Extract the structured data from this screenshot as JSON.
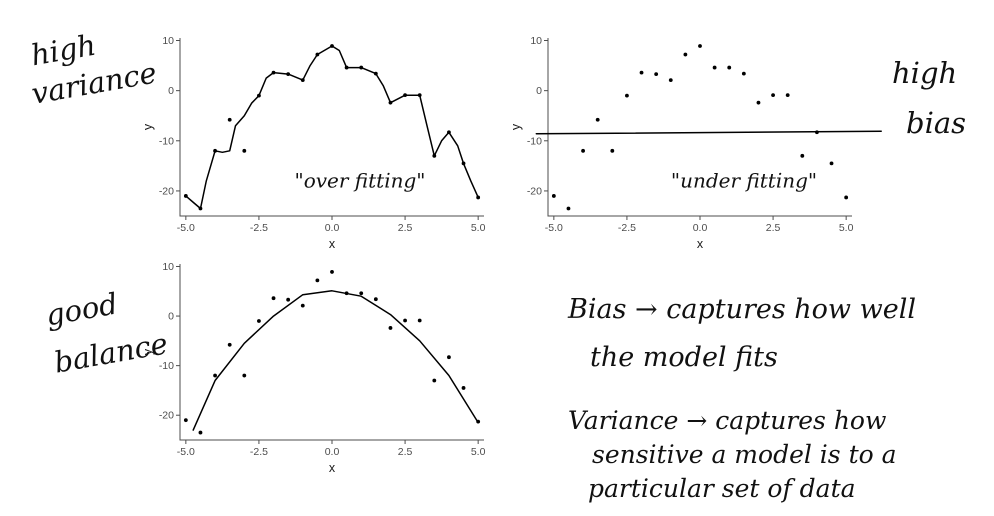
{
  "annotations": {
    "high_variance": [
      "high",
      "variance"
    ],
    "high_bias": [
      "high",
      "bias"
    ],
    "good_balance": [
      "good",
      "balance"
    ],
    "overfitting": "\"over fitting\"",
    "underfitting": "\"under fitting\"",
    "bias_note": [
      "Bias → captures how well",
      "the model fits"
    ],
    "variance_note": [
      "Variance → captures how",
      "sensitive a model is to a",
      "particular set of data"
    ]
  },
  "colors": {
    "points": "#000000",
    "lines": "#000000",
    "axes": "#4d4d4d"
  },
  "chart_data": [
    {
      "type": "scatter",
      "panel": "overfit",
      "xlabel": "x",
      "ylabel": "y",
      "xlim": [
        -5.2,
        5.2
      ],
      "ylim": [
        -25,
        10.5
      ],
      "xticks": [
        -5.0,
        -2.5,
        0.0,
        2.5,
        5.0
      ],
      "xtick_labels": [
        "-5.0",
        "-2.5",
        "0.0",
        "2.5",
        "5.0"
      ],
      "yticks": [
        -20,
        -10,
        0,
        10
      ],
      "grid": false,
      "points": [
        [
          -5,
          -21
        ],
        [
          -4.5,
          -23.5
        ],
        [
          -4,
          -12
        ],
        [
          -3.5,
          -5.8
        ],
        [
          -3,
          -12
        ],
        [
          -2.5,
          -1
        ],
        [
          -2,
          3.6
        ],
        [
          -1.5,
          3.3
        ],
        [
          -1,
          2.1
        ],
        [
          -0.5,
          7.2
        ],
        [
          0,
          8.9
        ],
        [
          0.5,
          4.6
        ],
        [
          1,
          4.6
        ],
        [
          1.5,
          3.4
        ],
        [
          2,
          -2.4
        ],
        [
          2.5,
          -0.9
        ],
        [
          3,
          -0.9
        ],
        [
          3.5,
          -13
        ],
        [
          4,
          -8.3
        ],
        [
          4.5,
          -14.5
        ],
        [
          5,
          -21.3
        ]
      ],
      "fit": [
        [
          -5,
          -21
        ],
        [
          -4.7,
          -22.5
        ],
        [
          -4.5,
          -23.5
        ],
        [
          -4.3,
          -18
        ],
        [
          -4,
          -12
        ],
        [
          -3.75,
          -12.3
        ],
        [
          -3.5,
          -12
        ],
        [
          -3.3,
          -7
        ],
        [
          -3,
          -5
        ],
        [
          -2.75,
          -2.5
        ],
        [
          -2.5,
          -1
        ],
        [
          -2.25,
          2.5
        ],
        [
          -2,
          3.6
        ],
        [
          -1.5,
          3.3
        ],
        [
          -1,
          2.1
        ],
        [
          -0.75,
          5
        ],
        [
          -0.5,
          7.2
        ],
        [
          0,
          8.9
        ],
        [
          0.25,
          8
        ],
        [
          0.5,
          4.6
        ],
        [
          1,
          4.6
        ],
        [
          1.5,
          3.4
        ],
        [
          1.75,
          1
        ],
        [
          2,
          -2.4
        ],
        [
          2.5,
          -0.9
        ],
        [
          3,
          -0.9
        ],
        [
          3.25,
          -7
        ],
        [
          3.5,
          -13
        ],
        [
          3.75,
          -10
        ],
        [
          4,
          -8.3
        ],
        [
          4.3,
          -11
        ],
        [
          4.5,
          -14.5
        ],
        [
          4.75,
          -18
        ],
        [
          5,
          -21.3
        ]
      ]
    },
    {
      "type": "scatter",
      "panel": "underfit",
      "xlabel": "x",
      "ylabel": "y",
      "xlim": [
        -5.2,
        5.2
      ],
      "ylim": [
        -25,
        10.5
      ],
      "xticks": [
        -5.0,
        -2.5,
        0.0,
        2.5,
        5.0
      ],
      "xtick_labels": [
        "-5.0",
        "-2.5",
        "0.0",
        "2.5",
        "5.0"
      ],
      "yticks": [
        -20,
        -10,
        0,
        10
      ],
      "grid": false,
      "points": [
        [
          -5,
          -21
        ],
        [
          -4.5,
          -23.5
        ],
        [
          -4,
          -12
        ],
        [
          -3.5,
          -5.8
        ],
        [
          -3,
          -12
        ],
        [
          -2.5,
          -1
        ],
        [
          -2,
          3.6
        ],
        [
          -1.5,
          3.3
        ],
        [
          -1,
          2.1
        ],
        [
          -0.5,
          7.2
        ],
        [
          0,
          8.9
        ],
        [
          0.5,
          4.6
        ],
        [
          1,
          4.6
        ],
        [
          1.5,
          3.4
        ],
        [
          2,
          -2.4
        ],
        [
          2.5,
          -0.9
        ],
        [
          3,
          -0.9
        ],
        [
          3.5,
          -13
        ],
        [
          4,
          -8.3
        ],
        [
          4.5,
          -14.5
        ],
        [
          5,
          -21.3
        ]
      ],
      "fit": [
        [
          -5.6,
          -8.6
        ],
        [
          6.2,
          -8.1
        ]
      ]
    },
    {
      "type": "scatter",
      "panel": "balanced",
      "xlabel": "x",
      "ylabel": "y",
      "xlim": [
        -5.2,
        5.2
      ],
      "ylim": [
        -25,
        10.5
      ],
      "xticks": [
        -5.0,
        -2.5,
        0.0,
        2.5,
        5.0
      ],
      "xtick_labels": [
        "-5.0",
        "-2.5",
        "0.0",
        "2.5",
        "5.0"
      ],
      "yticks": [
        -20,
        -10,
        0,
        10
      ],
      "grid": false,
      "points": [
        [
          -5,
          -21
        ],
        [
          -4.5,
          -23.5
        ],
        [
          -4,
          -12
        ],
        [
          -3.5,
          -5.8
        ],
        [
          -3,
          -12
        ],
        [
          -2.5,
          -1
        ],
        [
          -2,
          3.6
        ],
        [
          -1.5,
          3.3
        ],
        [
          -1,
          2.1
        ],
        [
          -0.5,
          7.2
        ],
        [
          0,
          8.9
        ],
        [
          0.5,
          4.6
        ],
        [
          1,
          4.6
        ],
        [
          1.5,
          3.4
        ],
        [
          2,
          -2.4
        ],
        [
          2.5,
          -0.9
        ],
        [
          3,
          -0.9
        ],
        [
          3.5,
          -13
        ],
        [
          4,
          -8.3
        ],
        [
          4.5,
          -14.5
        ],
        [
          5,
          -21.3
        ]
      ],
      "fit": [
        [
          -4.75,
          -23
        ],
        [
          -4,
          -13
        ],
        [
          -3,
          -5.5
        ],
        [
          -2,
          0
        ],
        [
          -1,
          4.3
        ],
        [
          0,
          5.1
        ],
        [
          1,
          4
        ],
        [
          2,
          0.3
        ],
        [
          3,
          -5
        ],
        [
          4,
          -12
        ],
        [
          5,
          -21.5
        ]
      ]
    }
  ]
}
